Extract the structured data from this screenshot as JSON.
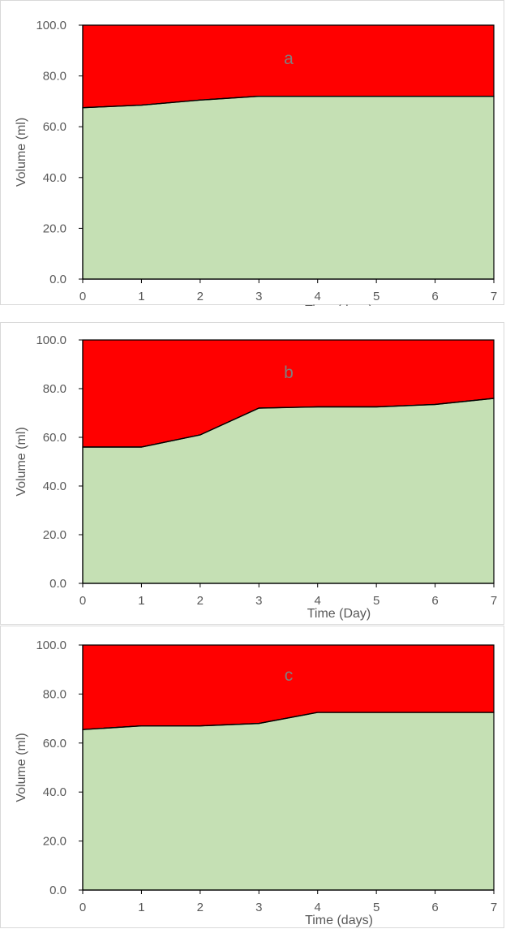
{
  "colors": {
    "upper_fill": "#ff0000",
    "lower_fill": "#c5e0b4",
    "boundary": "#000000",
    "axis": "#000000",
    "text": "#595959"
  },
  "chart_data": [
    {
      "type": "area",
      "panel_label": "a",
      "xlabel": "Time (days)",
      "ylabel": "Volume (ml)",
      "x": [
        0,
        1,
        2,
        3,
        4,
        5,
        6,
        7
      ],
      "series": [
        {
          "color": "#c5e0b4",
          "values": [
            67.5,
            68.5,
            70.5,
            72,
            72,
            72,
            72,
            72
          ]
        },
        {
          "color": "#ff0000",
          "values": [
            32.5,
            31.5,
            29.5,
            28,
            28,
            28,
            28,
            28
          ]
        }
      ],
      "stacked": true,
      "ylim": [
        0,
        100
      ],
      "xlim": [
        0,
        7
      ],
      "xticks": [
        "0",
        "1",
        "2",
        "3",
        "4",
        "5",
        "6",
        "7"
      ],
      "yticks": [
        "0.0",
        "20.0",
        "40.0",
        "60.0",
        "80.0",
        "100.0"
      ],
      "grid": false
    },
    {
      "type": "area",
      "panel_label": "b",
      "xlabel": "Time (Day)",
      "ylabel": "Volume (ml)",
      "x": [
        0,
        1,
        2,
        3,
        4,
        5,
        6,
        7
      ],
      "series": [
        {
          "color": "#c5e0b4",
          "values": [
            56,
            56,
            61,
            72,
            72.5,
            72.5,
            73.5,
            76
          ]
        },
        {
          "color": "#ff0000",
          "values": [
            44,
            44,
            39,
            28,
            27.5,
            27.5,
            26.5,
            24
          ]
        }
      ],
      "stacked": true,
      "ylim": [
        0,
        100
      ],
      "xlim": [
        0,
        7
      ],
      "xticks": [
        "0",
        "1",
        "2",
        "3",
        "4",
        "5",
        "6",
        "7"
      ],
      "yticks": [
        "0.0",
        "20.0",
        "40.0",
        "60.0",
        "80.0",
        "100.0"
      ],
      "grid": false
    },
    {
      "type": "area",
      "panel_label": "c",
      "xlabel": "Time (days)",
      "ylabel": "Volume (ml)",
      "x": [
        0,
        1,
        2,
        3,
        4,
        5,
        6,
        7
      ],
      "series": [
        {
          "color": "#c5e0b4",
          "values": [
            65.5,
            67,
            67,
            68,
            72.5,
            72.5,
            72.5,
            72.5
          ]
        },
        {
          "color": "#ff0000",
          "values": [
            34.5,
            33,
            33,
            32,
            27.5,
            27.5,
            27.5,
            27.5
          ]
        }
      ],
      "stacked": true,
      "ylim": [
        0,
        100
      ],
      "xlim": [
        0,
        7
      ],
      "xticks": [
        "0",
        "1",
        "2",
        "3",
        "4",
        "5",
        "6",
        "7"
      ],
      "yticks": [
        "0.0",
        "20.0",
        "40.0",
        "60.0",
        "80.0",
        "100.0"
      ],
      "grid": false
    }
  ]
}
